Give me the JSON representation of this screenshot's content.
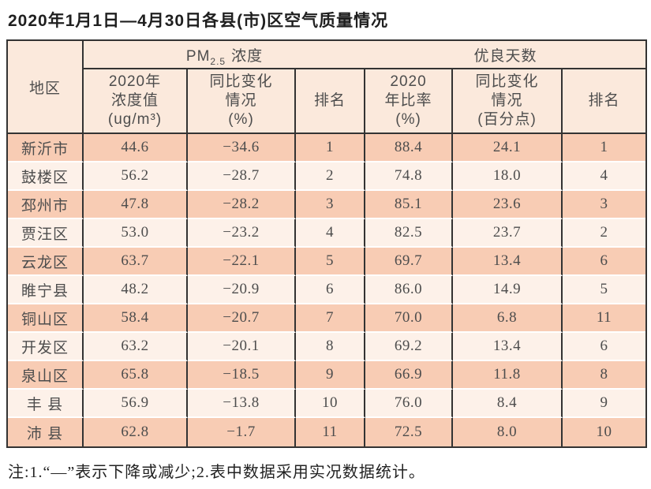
{
  "title": "2020年1月1日—4月30日各县(市)区空气质量情况",
  "note": "注:1.“—”表示下降或减少;2.表中数据采用实况数据统计。",
  "colors": {
    "header_bg": "#fbe9dc",
    "row_dark_bg": "#f8ccb4",
    "row_light_bg": "#fdf1e9",
    "border": "#333333",
    "cell_text": "#4d4d4d",
    "title_text": "#1f1f1f"
  },
  "table": {
    "region_header": "地区",
    "pm_group": {
      "prefix": "PM",
      "sub": "2.5",
      "suffix": "浓度"
    },
    "days_group": "优良天数",
    "subheaders": [
      "2020年\n浓度值\n(ug/m³)",
      "同比变化\n情况\n(%)",
      "排名",
      "2020\n年比率\n(%)",
      "同比变化\n情况\n(百分点)",
      "排名"
    ],
    "rows": [
      {
        "region": "新沂市",
        "pm_value": "44.6",
        "pm_change": "−34.6",
        "pm_rank": "1",
        "days_rate": "88.4",
        "days_change": "24.1",
        "days_rank": "1"
      },
      {
        "region": "鼓楼区",
        "pm_value": "56.2",
        "pm_change": "−28.7",
        "pm_rank": "2",
        "days_rate": "74.8",
        "days_change": "18.0",
        "days_rank": "4"
      },
      {
        "region": "邳州市",
        "pm_value": "47.8",
        "pm_change": "−28.2",
        "pm_rank": "3",
        "days_rate": "85.1",
        "days_change": "23.6",
        "days_rank": "3"
      },
      {
        "region": "贾汪区",
        "pm_value": "53.0",
        "pm_change": "−23.2",
        "pm_rank": "4",
        "days_rate": "82.5",
        "days_change": "23.7",
        "days_rank": "2"
      },
      {
        "region": "云龙区",
        "pm_value": "63.7",
        "pm_change": "−22.1",
        "pm_rank": "5",
        "days_rate": "69.7",
        "days_change": "13.4",
        "days_rank": "6"
      },
      {
        "region": "睢宁县",
        "pm_value": "48.2",
        "pm_change": "−20.9",
        "pm_rank": "6",
        "days_rate": "86.0",
        "days_change": "14.9",
        "days_rank": "5"
      },
      {
        "region": "铜山区",
        "pm_value": "58.4",
        "pm_change": "−20.7",
        "pm_rank": "7",
        "days_rate": "70.0",
        "days_change": "6.8",
        "days_rank": "11"
      },
      {
        "region": "开发区",
        "pm_value": "63.2",
        "pm_change": "−20.1",
        "pm_rank": "8",
        "days_rate": "69.2",
        "days_change": "13.4",
        "days_rank": "6"
      },
      {
        "region": "泉山区",
        "pm_value": "65.8",
        "pm_change": "−18.5",
        "pm_rank": "9",
        "days_rate": "66.9",
        "days_change": "11.8",
        "days_rank": "8"
      },
      {
        "region": "丰 县",
        "pm_value": "56.9",
        "pm_change": "−13.8",
        "pm_rank": "10",
        "days_rate": "76.0",
        "days_change": "8.4",
        "days_rank": "9"
      },
      {
        "region": "沛 县",
        "pm_value": "62.8",
        "pm_change": "−1.7",
        "pm_rank": "11",
        "days_rate": "72.5",
        "days_change": "8.0",
        "days_rank": "10"
      }
    ]
  }
}
